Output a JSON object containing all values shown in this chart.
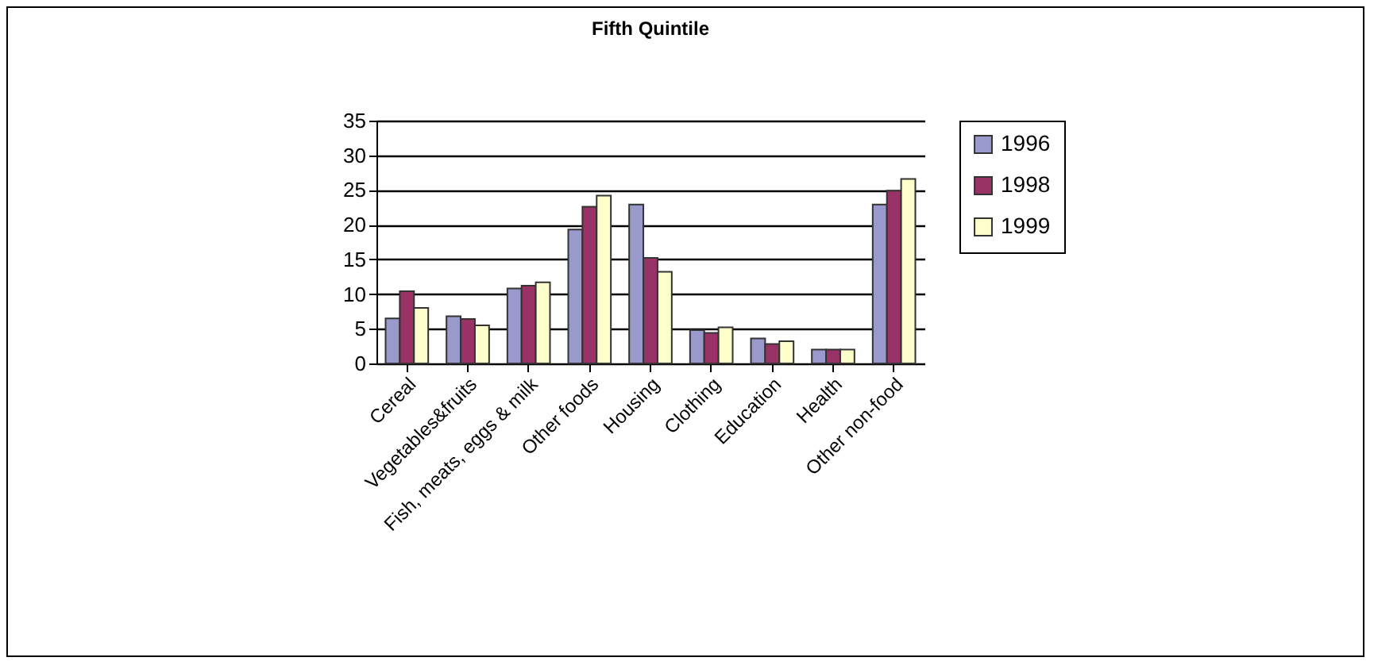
{
  "chart_data": {
    "type": "bar",
    "title": "Fifth Quintile",
    "categories": [
      "Cereal",
      "Vegetables&fruits",
      "Fish, meats, eggs & milk",
      "Other foods",
      "Housing",
      "Clothing",
      "Education",
      "Health",
      "Other non-food"
    ],
    "series": [
      {
        "name": "1996",
        "color": "#9999cc",
        "values": [
          6.5,
          6.8,
          10.8,
          19.3,
          22.9,
          4.8,
          3.6,
          2.0,
          22.9
        ]
      },
      {
        "name": "1998",
        "color": "#993366",
        "values": [
          10.4,
          6.4,
          11.2,
          22.6,
          15.2,
          4.4,
          2.8,
          2.0,
          24.9
        ]
      },
      {
        "name": "1999",
        "color": "#ffffcc",
        "values": [
          8.0,
          5.5,
          11.7,
          24.2,
          13.2,
          5.2,
          3.2,
          2.0,
          26.6
        ]
      }
    ],
    "ylim": [
      0,
      35
    ],
    "yticks": [
      0,
      5,
      10,
      15,
      20,
      25,
      30,
      35
    ],
    "grid": "y",
    "legend": "right"
  }
}
